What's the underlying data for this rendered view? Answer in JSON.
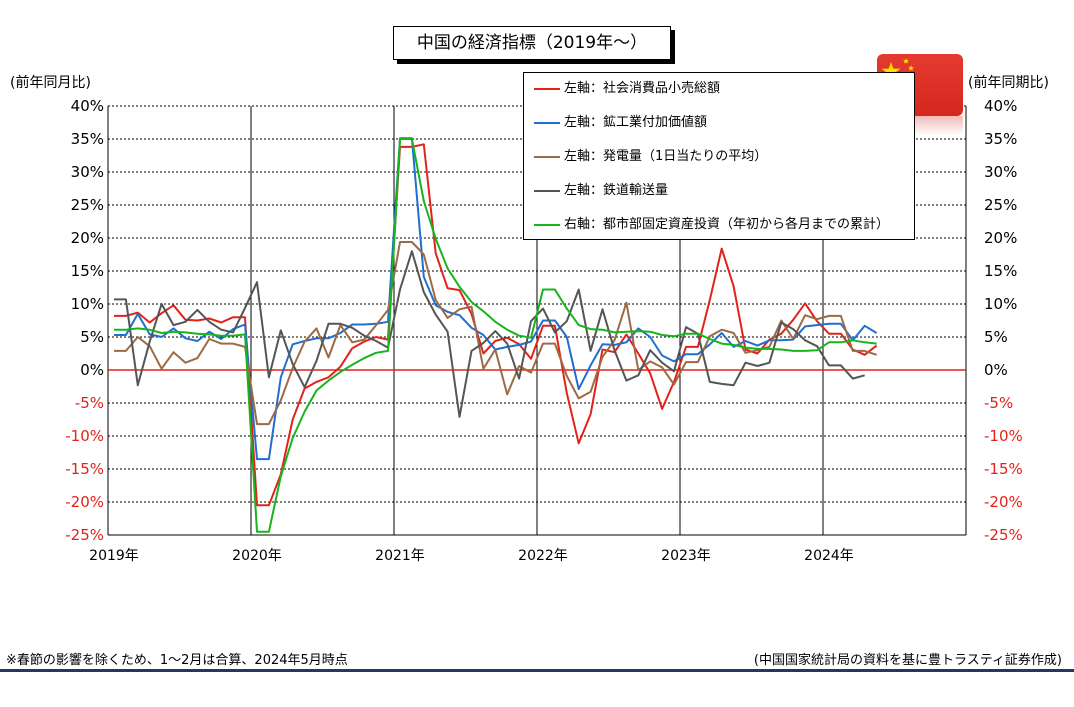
{
  "chart_data": {
    "type": "line",
    "title": "中国の経済指標（2019年～）",
    "y_left_label": "(前年同月比)",
    "y_right_label": "(前年同期比)",
    "ylim": [
      -25,
      40
    ],
    "y_ticks": [
      "40%",
      "35%",
      "30%",
      "25%",
      "20%",
      "15%",
      "10%",
      "5%",
      "0%",
      "-5%",
      "-10%",
      "-15%",
      "-20%",
      "-25%"
    ],
    "y_tick_values": [
      40,
      35,
      30,
      25,
      20,
      15,
      10,
      5,
      0,
      -5,
      -10,
      -15,
      -20,
      -25
    ],
    "x_tick_labels": [
      "2019年",
      "2020年",
      "2021年",
      "2022年",
      "2023年",
      "2024年"
    ],
    "grid": true,
    "legend_position": "top-right",
    "series": [
      {
        "name": "左軸：社会消費品小売総額",
        "color": "#e2231a",
        "start": 0,
        "values": [
          8.2,
          8.2,
          8.7,
          7.2,
          8.6,
          9.8,
          7.6,
          7.5,
          7.8,
          7.2,
          8.0,
          8.0,
          -20.5,
          -20.5,
          -15.8,
          -7.5,
          -2.8,
          -1.8,
          -1.1,
          0.5,
          3.3,
          4.3,
          5.0,
          4.6,
          33.8,
          33.8,
          34.2,
          17.7,
          12.4,
          12.1,
          8.5,
          2.5,
          4.4,
          4.9,
          3.9,
          1.7,
          6.7,
          6.7,
          -3.5,
          -11.1,
          -6.7,
          3.1,
          2.7,
          5.4,
          2.5,
          -0.5,
          -5.9,
          -1.8,
          3.5,
          3.5,
          10.6,
          18.4,
          12.7,
          3.1,
          2.5,
          4.6,
          5.5,
          7.6,
          10.1,
          7.4,
          5.5,
          5.5,
          3.1,
          2.3,
          3.7
        ]
      },
      {
        "name": "左軸：鉱工業付加価値額",
        "color": "#1f6fd1",
        "start": 0,
        "values": [
          5.3,
          5.3,
          8.5,
          5.4,
          5.0,
          6.3,
          4.8,
          4.4,
          5.8,
          4.7,
          6.2,
          6.9,
          -13.5,
          -13.5,
          -1.1,
          3.9,
          4.4,
          4.8,
          4.8,
          5.6,
          6.9,
          6.9,
          7.0,
          7.3,
          35.1,
          35.1,
          14.1,
          9.8,
          8.8,
          8.3,
          6.4,
          5.3,
          3.1,
          3.5,
          3.8,
          4.3,
          7.5,
          7.5,
          5.0,
          -2.9,
          0.7,
          3.9,
          3.8,
          4.2,
          6.3,
          5.0,
          2.2,
          1.3,
          2.4,
          2.4,
          3.9,
          5.6,
          3.5,
          4.4,
          3.7,
          4.5,
          4.5,
          4.6,
          6.6,
          6.8,
          7.0,
          7.0,
          4.5,
          6.7,
          5.6
        ]
      },
      {
        "name": "左軸：発電量（1日当たりの平均）",
        "color": "#9c6a43",
        "start": 0,
        "values": [
          2.9,
          2.9,
          5.0,
          3.6,
          0.2,
          2.7,
          1.1,
          1.8,
          4.7,
          4.0,
          4.0,
          3.5,
          -8.2,
          -8.2,
          -4.6,
          0.3,
          4.3,
          6.3,
          1.9,
          6.8,
          4.2,
          4.6,
          6.8,
          9.1,
          19.4,
          19.4,
          17.5,
          10.6,
          7.9,
          9.2,
          9.6,
          0.2,
          3.1,
          -3.7,
          0.6,
          -0.4,
          4.0,
          4.0,
          -0.9,
          -4.3,
          -3.3,
          2.0,
          4.5,
          10.2,
          0.0,
          1.3,
          0.4,
          -2.2,
          1.2,
          1.2,
          5.1,
          6.1,
          5.6,
          2.6,
          3.0,
          3.5,
          7.5,
          4.7,
          8.3,
          7.7,
          8.2,
          8.2,
          2.9,
          2.9,
          2.3
        ]
      },
      {
        "name": "左軸：鉄道輸送量",
        "color": "#555555",
        "start": 0,
        "values": [
          10.7,
          10.7,
          -2.3,
          4.3,
          10.0,
          6.8,
          7.3,
          9.1,
          7.3,
          6.1,
          5.7,
          9.4,
          13.3,
          -1.1,
          6.0,
          0.9,
          -2.6,
          1.4,
          7.0,
          7.0,
          6.4,
          5.2,
          4.4,
          3.4,
          12.2,
          18.0,
          11.8,
          8.4,
          5.8,
          -7.1,
          2.9,
          4.1,
          5.9,
          4.0,
          -1.3,
          7.4,
          9.3,
          5.7,
          7.4,
          12.2,
          2.9,
          9.2,
          3.0,
          -1.6,
          -0.8,
          3.0,
          1.1,
          -0.2,
          6.5,
          5.5,
          -1.8,
          -2.1,
          -2.3,
          1.1,
          0.6,
          1.1,
          7.2,
          6.2,
          4.5,
          3.6,
          0.7,
          0.7,
          -1.3,
          -0.8
        ]
      },
      {
        "name": "右軸：都市部固定資産投資（年初から各月までの累計）",
        "color": "#17b41c",
        "start": 0,
        "values": [
          6.1,
          6.1,
          6.3,
          6.1,
          5.6,
          5.8,
          5.7,
          5.5,
          5.4,
          5.2,
          5.2,
          5.4,
          -24.5,
          -24.5,
          -16.1,
          -10.3,
          -6.3,
          -3.1,
          -1.6,
          -0.3,
          0.8,
          1.8,
          2.6,
          2.9,
          35.0,
          35.0,
          25.6,
          19.9,
          15.4,
          12.6,
          10.3,
          8.9,
          7.3,
          6.1,
          5.2,
          4.9,
          12.2,
          12.2,
          9.3,
          6.8,
          6.2,
          6.1,
          5.7,
          5.8,
          5.9,
          5.8,
          5.3,
          5.1,
          5.5,
          5.5,
          4.7,
          4.0,
          3.8,
          3.4,
          3.2,
          3.2,
          3.1,
          2.9,
          2.9,
          3.0,
          4.2,
          4.2,
          4.5,
          4.2,
          4.0
        ]
      }
    ]
  },
  "footnote_left": "※春節の影響を除くため、1～2月は合算、2024年5月時点",
  "footnote_right": "(中国国家統計局の資料を基に豊トラスティ証券作成)",
  "flag_name": "china-flag",
  "axis_colors": {
    "left": "#000000",
    "right": "#000000",
    "negative": "#e2231a",
    "zero_line": "#e2231a"
  }
}
